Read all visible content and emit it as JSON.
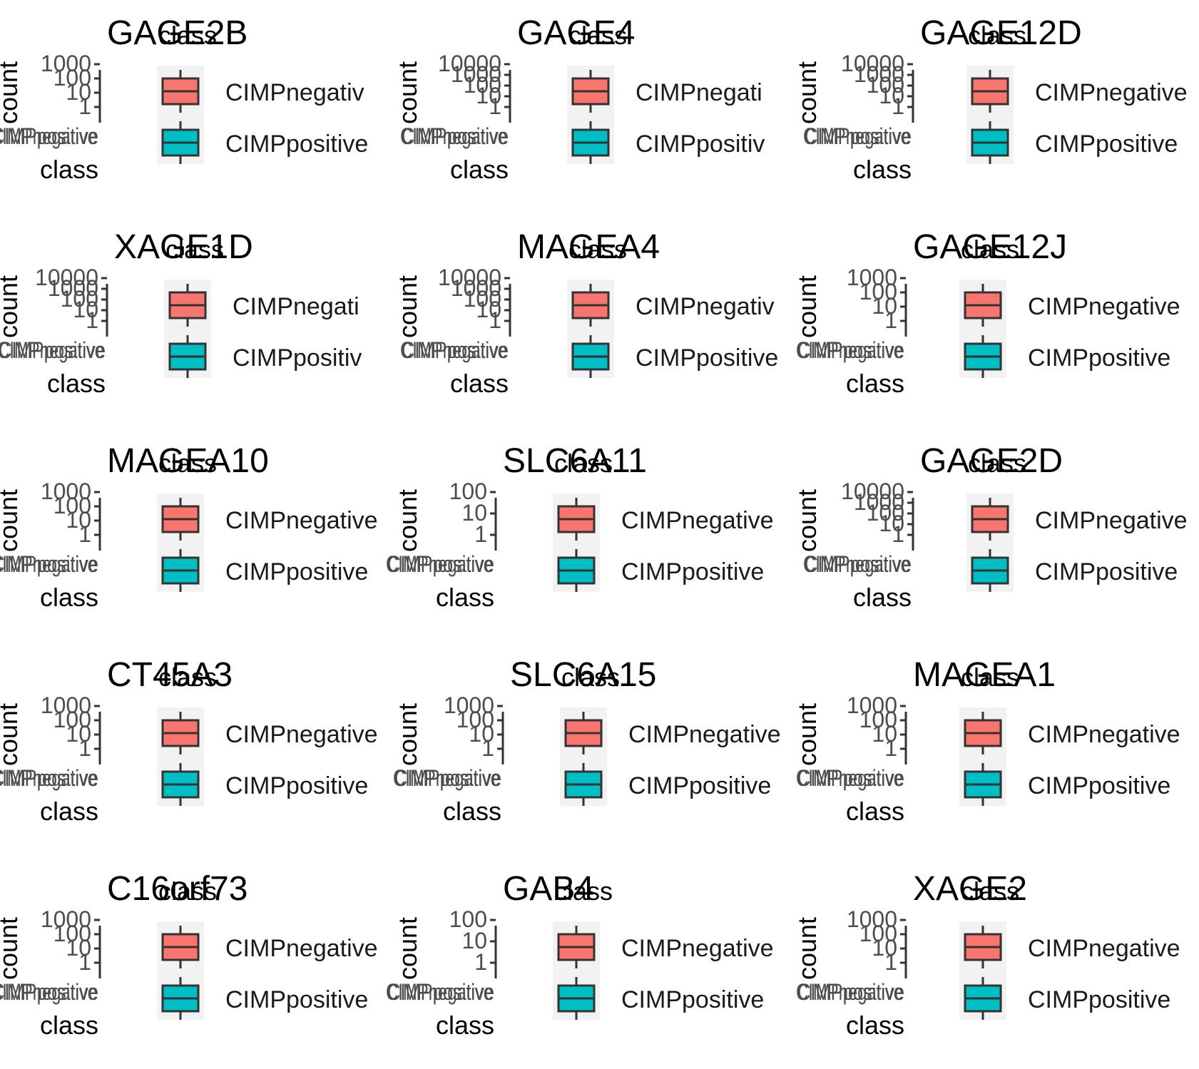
{
  "chart_data": [
    {
      "type": "boxplot",
      "title": "GAGE2B",
      "legend_title": "class",
      "xlabel": "class",
      "ylabel": "count",
      "y_scale": "log10",
      "ytick_labels": [
        "1",
        "10",
        "100",
        "1000"
      ],
      "xtick_labels": [
        "CIMPnegative",
        "CIMPpositive"
      ],
      "legend": [
        "CIMPnegativ",
        "CIMPpositive"
      ]
    },
    {
      "type": "boxplot",
      "title": "GAGE4",
      "legend_title": "class",
      "xlabel": "class",
      "ylabel": "count",
      "y_scale": "log10",
      "ytick_labels": [
        "1",
        "10",
        "100",
        "1000",
        "10000"
      ],
      "xtick_labels": [
        "CIMPnegative",
        "CIMPpositive"
      ],
      "legend": [
        "CIMPnegati",
        "CIMPpositiv"
      ]
    },
    {
      "type": "boxplot",
      "title": "GAGE12D",
      "legend_title": "class",
      "xlabel": "class",
      "ylabel": "count",
      "y_scale": "log10",
      "ytick_labels": [
        "1",
        "10",
        "100",
        "1000",
        "10000"
      ],
      "xtick_labels": [
        "CIMPnegative",
        "CIMPpositive"
      ],
      "legend": [
        "CIMPnegative",
        "CIMPpositive"
      ]
    },
    {
      "type": "boxplot",
      "title": "XAGE1D",
      "legend_title": "class",
      "xlabel": "class",
      "ylabel": "count",
      "y_scale": "log10",
      "ytick_labels": [
        "1",
        "10",
        "100",
        "1000",
        "10000"
      ],
      "xtick_labels": [
        "CIMPnegative",
        "CIMPpositive"
      ],
      "legend": [
        "CIMPnegati",
        "CIMPpositiv"
      ]
    },
    {
      "type": "boxplot",
      "title": "MAGEA4",
      "legend_title": "class",
      "xlabel": "class",
      "ylabel": "count",
      "y_scale": "log10",
      "ytick_labels": [
        "1",
        "10",
        "100",
        "1000",
        "10000"
      ],
      "xtick_labels": [
        "CIMPnegative",
        "CIMPpositive"
      ],
      "legend": [
        "CIMPnegativ",
        "CIMPpositive"
      ]
    },
    {
      "type": "boxplot",
      "title": "GAGE12J",
      "legend_title": "class",
      "xlabel": "class",
      "ylabel": "count",
      "y_scale": "log10",
      "ytick_labels": [
        "1",
        "10",
        "100",
        "1000"
      ],
      "xtick_labels": [
        "CIMPnegative",
        "CIMPpositive"
      ],
      "legend": [
        "CIMPnegative",
        "CIMPpositive"
      ]
    },
    {
      "type": "boxplot",
      "title": "MAGEA10",
      "legend_title": "class",
      "xlabel": "class",
      "ylabel": "count",
      "y_scale": "log10",
      "ytick_labels": [
        "1",
        "10",
        "100",
        "1000"
      ],
      "xtick_labels": [
        "CIMPnegative",
        "CIMPpositive"
      ],
      "legend": [
        "CIMPnegative",
        "CIMPpositive"
      ]
    },
    {
      "type": "boxplot",
      "title": "SLC6A11",
      "legend_title": "class",
      "xlabel": "class",
      "ylabel": "count",
      "y_scale": "log10",
      "ytick_labels": [
        "1",
        "10",
        "100"
      ],
      "xtick_labels": [
        "CIMPnegative",
        "CIMPpositive"
      ],
      "legend": [
        "CIMPnegative",
        "CIMPpositive"
      ]
    },
    {
      "type": "boxplot",
      "title": "GAGE2D",
      "legend_title": "class",
      "xlabel": "class",
      "ylabel": "count",
      "y_scale": "log10",
      "ytick_labels": [
        "1",
        "10",
        "100",
        "1000",
        "10000"
      ],
      "xtick_labels": [
        "CIMPnegative",
        "CIMPpositive"
      ],
      "legend": [
        "CIMPnegative",
        "CIMPpositive"
      ]
    },
    {
      "type": "boxplot",
      "title": "CT45A3",
      "legend_title": "class",
      "xlabel": "class",
      "ylabel": "count",
      "y_scale": "log10",
      "ytick_labels": [
        "1",
        "10",
        "100",
        "1000"
      ],
      "xtick_labels": [
        "CIMPnegative",
        "CIMPpositive"
      ],
      "legend": [
        "CIMPnegative",
        "CIMPpositive"
      ]
    },
    {
      "type": "boxplot",
      "title": "SLC6A15",
      "legend_title": "class",
      "xlabel": "class",
      "ylabel": "count",
      "y_scale": "log10",
      "ytick_labels": [
        "1",
        "10",
        "100",
        "1000"
      ],
      "xtick_labels": [
        "CIMPnegative",
        "CIMPpositive"
      ],
      "legend": [
        "CIMPnegative",
        "CIMPpositive"
      ]
    },
    {
      "type": "boxplot",
      "title": "MAGEA1",
      "legend_title": "class",
      "xlabel": "class",
      "ylabel": "count",
      "y_scale": "log10",
      "ytick_labels": [
        "1",
        "10",
        "100",
        "1000"
      ],
      "xtick_labels": [
        "CIMPnegative",
        "CIMPpositive"
      ],
      "legend": [
        "CIMPnegative",
        "CIMPpositive"
      ]
    },
    {
      "type": "boxplot",
      "title": "C16orf73",
      "legend_title": "class",
      "xlabel": "class",
      "ylabel": "count",
      "y_scale": "log10",
      "ytick_labels": [
        "1",
        "10",
        "100",
        "1000"
      ],
      "xtick_labels": [
        "CIMPnegative",
        "CIMPpositive"
      ],
      "legend": [
        "CIMPnegative",
        "CIMPpositive"
      ]
    },
    {
      "type": "boxplot",
      "title": "GAB4",
      "legend_title": "class",
      "xlabel": "class",
      "ylabel": "count",
      "y_scale": "log10",
      "ytick_labels": [
        "1",
        "10",
        "100"
      ],
      "xtick_labels": [
        "CIMPnegative",
        "CIMPpositive"
      ],
      "legend": [
        "CIMPnegative",
        "CIMPpositive"
      ]
    },
    {
      "type": "boxplot",
      "title": "XAGE2",
      "legend_title": "class",
      "xlabel": "class",
      "ylabel": "count",
      "y_scale": "log10",
      "ytick_labels": [
        "1",
        "10",
        "100",
        "1000"
      ],
      "xtick_labels": [
        "CIMPnegative",
        "CIMPpositive"
      ],
      "legend": [
        "CIMPnegative",
        "CIMPpositive"
      ]
    }
  ],
  "colors": {
    "CIMPnegative": "#f8766d",
    "CIMPpositive": "#00bfc4",
    "legend_key_bg": "#f2f2f2",
    "box_outline": "#333333",
    "axis": "#333333"
  }
}
